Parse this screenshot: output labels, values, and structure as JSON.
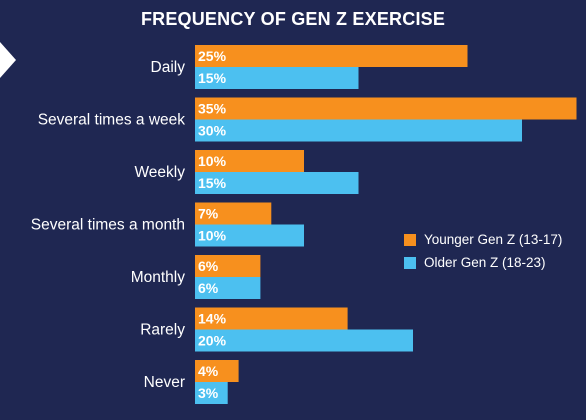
{
  "chart_data": {
    "type": "bar",
    "orientation": "horizontal",
    "title": "FREQUENCY OF GEN Z EXERCISE",
    "categories": [
      "Daily",
      "Several times a week",
      "Weekly",
      "Several times a month",
      "Monthly",
      "Rarely",
      "Never"
    ],
    "series": [
      {
        "name": "Younger Gen Z (13-17)",
        "color": "#f7901e",
        "values": [
          25,
          35,
          10,
          7,
          6,
          14,
          4
        ]
      },
      {
        "name": "Older Gen Z (18-23)",
        "color": "#4cc0f0",
        "values": [
          15,
          30,
          15,
          10,
          6,
          20,
          3
        ]
      }
    ],
    "value_suffix": "%",
    "xlim": [
      0,
      36
    ],
    "grid": false,
    "legend_position": "right"
  }
}
